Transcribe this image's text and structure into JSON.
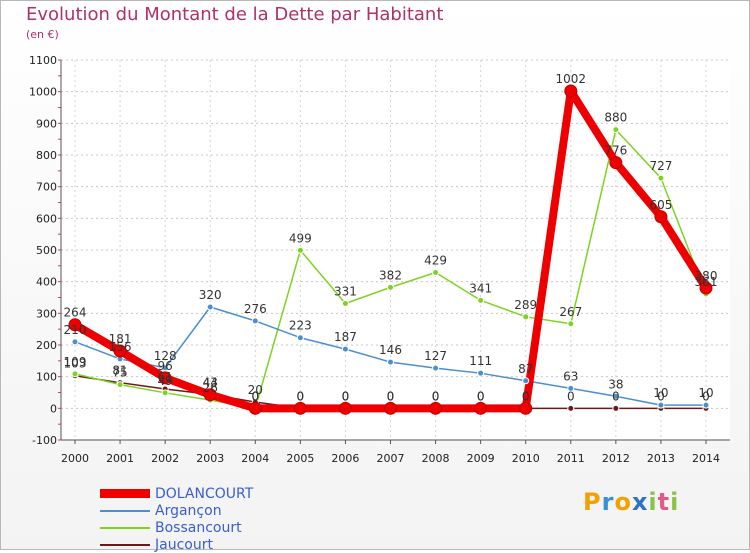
{
  "title": "Evolution du Montant de la Dette par Habitant",
  "subtitle": "(en €)",
  "logo": {
    "letters": [
      "P",
      "r",
      "o",
      "x",
      "i",
      "t",
      "i"
    ],
    "colors": [
      "#f4a000",
      "#3a8fd6",
      "#f4a000",
      "#2f74c0",
      "#8bc34a",
      "#e05a8a",
      "#8bc34a"
    ]
  },
  "chart_data": {
    "type": "line",
    "x": [
      2000,
      2001,
      2002,
      2003,
      2004,
      2005,
      2006,
      2007,
      2008,
      2009,
      2010,
      2011,
      2012,
      2013,
      2014
    ],
    "ylim": [
      -100,
      1100
    ],
    "yticks": [
      -100,
      0,
      100,
      200,
      300,
      400,
      500,
      600,
      700,
      800,
      900,
      1000,
      1100
    ],
    "grid": true,
    "legend_position": "bottom-left",
    "series": [
      {
        "name": "DOLANCOURT",
        "color": "#ee0000",
        "values": [
          264,
          181,
          96,
          43,
          0,
          0,
          0,
          0,
          0,
          0,
          0,
          1002,
          776,
          605,
          380
        ],
        "labels": [
          "264",
          "181",
          "96",
          "43",
          "0",
          "0",
          "0",
          "0",
          "0",
          "0",
          "0",
          "1002",
          "776",
          "605",
          "380"
        ]
      },
      {
        "name": "Arganҫon",
        "color": "#4a8fd0",
        "values": [
          210,
          156,
          128,
          320,
          276,
          223,
          187,
          146,
          127,
          111,
          87,
          63,
          38,
          10,
          10
        ],
        "labels": [
          "210",
          "156",
          "128",
          "320",
          "276",
          "223",
          "187",
          "146",
          "127",
          "111",
          "87",
          "63",
          "38",
          "10",
          "10"
        ]
      },
      {
        "name": "Bossancourt",
        "color": "#7ed321",
        "values": [
          109,
          75,
          49,
          26,
          0,
          499,
          331,
          382,
          429,
          341,
          289,
          267,
          880,
          727,
          361
        ],
        "labels": [
          "109",
          "75",
          "49",
          "26",
          "0",
          "499",
          "331",
          "382",
          "429",
          "341",
          "289",
          "267",
          "880",
          "727",
          "361"
        ]
      },
      {
        "name": "Jaucourt",
        "color": "#6b1a1a",
        "values": [
          103,
          81,
          61,
          44,
          20,
          0,
          0,
          0,
          0,
          0,
          0,
          0,
          0,
          0,
          0
        ],
        "labels": [
          "103",
          "81",
          "61",
          "44",
          "20",
          "0",
          "0",
          "0",
          "0",
          "0",
          "0",
          "0",
          "0",
          "0",
          "0"
        ]
      }
    ]
  }
}
